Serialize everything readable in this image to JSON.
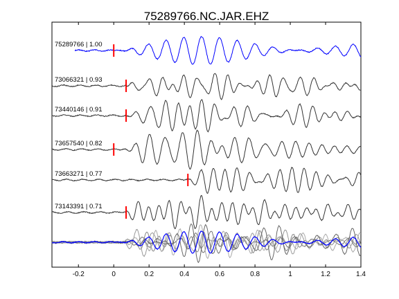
{
  "chart_data": {
    "type": "line",
    "title": "75289766.NC.JAR.EHZ",
    "xlabel": "",
    "ylabel": "",
    "xlim": [
      -0.35,
      1.4
    ],
    "xticks": [
      -0.2,
      0,
      0.2,
      0.4,
      0.6,
      0.8,
      1,
      1.2,
      1.4
    ],
    "xtick_labels": [
      "-0.2",
      "0",
      "0.2",
      "0.4",
      "0.6",
      "0.8",
      "1",
      "1.2",
      "1.4"
    ],
    "grid": false,
    "series": [
      {
        "name": "75289766 | 1.00",
        "label": "75289766 | 1.00",
        "color": "#0000ff",
        "pick_time": 0.0,
        "onset": 0.0
      },
      {
        "name": "73066321 | 0.93",
        "label": "73066321 | 0.93",
        "color": "#333333",
        "pick_time": 0.07,
        "onset": 0.07
      },
      {
        "name": "73440146 | 0.91",
        "label": "73440146 | 0.91",
        "color": "#333333",
        "pick_time": 0.07,
        "onset": 0.06
      },
      {
        "name": "73657540 | 0.82",
        "label": "73657540 | 0.82",
        "color": "#333333",
        "pick_time": 0.0,
        "onset": 0.04
      },
      {
        "name": "73663271 | 0.77",
        "label": "73663271 | 0.77",
        "color": "#333333",
        "pick_time": 0.42,
        "onset": 0.4
      },
      {
        "name": "73143391 | 0.71",
        "label": "73143391 | 0.71",
        "color": "#333333",
        "pick_time": 0.07,
        "onset": 0.03
      }
    ],
    "stack_colors": [
      "#888888",
      "#999999",
      "#777777",
      "#aaaaaa",
      "#666666"
    ],
    "pick_color": "#ff0000"
  }
}
